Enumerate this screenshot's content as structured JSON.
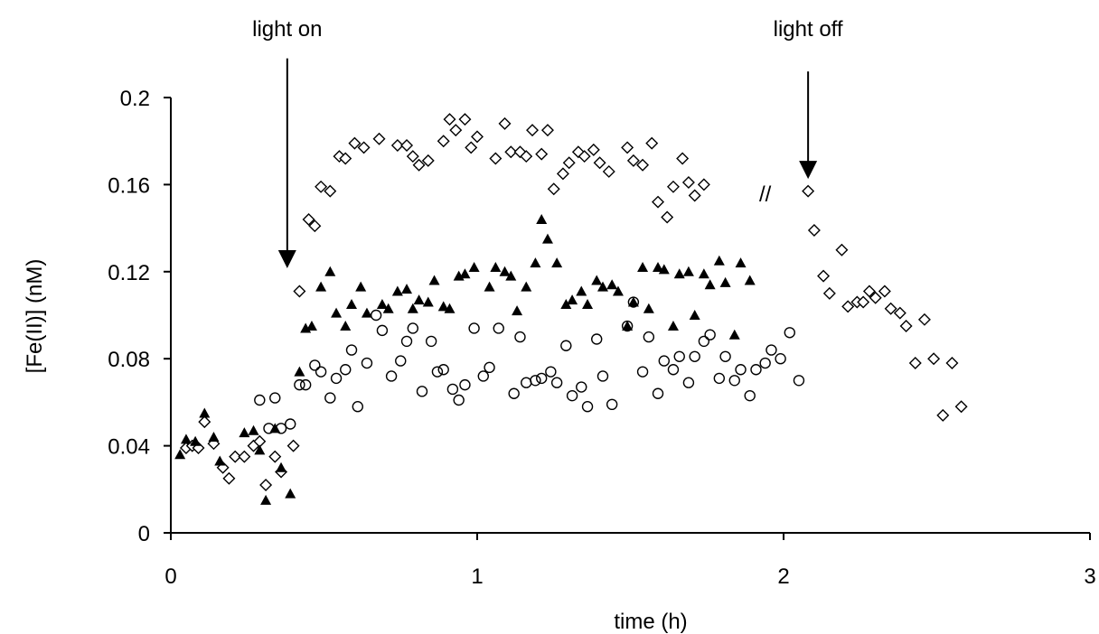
{
  "chart_data": {
    "type": "scatter",
    "xlabel": "time (h)",
    "ylabel": "[Fe(II)] (nM)",
    "xlim": [
      0,
      3
    ],
    "ylim": [
      0,
      0.2
    ],
    "x_ticks": [
      "0",
      "1",
      "2",
      "3"
    ],
    "y_ticks": [
      "0",
      "0.04",
      "0.08",
      "0.12",
      "0.16",
      "0.2"
    ],
    "grid": false,
    "legend": "none",
    "annotations": [
      {
        "text": "light on",
        "x": 0.38,
        "arrow_from_y": 0.218,
        "arrow_to_y": 0.122
      },
      {
        "text": "light off",
        "x": 2.08,
        "arrow_from_y": 0.212,
        "arrow_to_y": 0.163
      },
      {
        "text": "//",
        "x": 1.94,
        "y": 0.156
      }
    ],
    "series": [
      {
        "marker": "open-diamond",
        "color": "#000000",
        "points": [
          [
            0.05,
            0.039
          ],
          [
            0.07,
            0.04
          ],
          [
            0.09,
            0.039
          ],
          [
            0.11,
            0.051
          ],
          [
            0.14,
            0.041
          ],
          [
            0.17,
            0.03
          ],
          [
            0.19,
            0.025
          ],
          [
            0.21,
            0.035
          ],
          [
            0.24,
            0.035
          ],
          [
            0.27,
            0.04
          ],
          [
            0.29,
            0.042
          ],
          [
            0.31,
            0.022
          ],
          [
            0.34,
            0.035
          ],
          [
            0.36,
            0.028
          ],
          [
            0.4,
            0.04
          ],
          [
            0.42,
            0.111
          ],
          [
            0.45,
            0.144
          ],
          [
            0.47,
            0.141
          ],
          [
            0.49,
            0.159
          ],
          [
            0.52,
            0.157
          ],
          [
            0.55,
            0.173
          ],
          [
            0.57,
            0.172
          ],
          [
            0.6,
            0.179
          ],
          [
            0.63,
            0.177
          ],
          [
            0.68,
            0.181
          ],
          [
            0.74,
            0.178
          ],
          [
            0.77,
            0.178
          ],
          [
            0.79,
            0.173
          ],
          [
            0.81,
            0.169
          ],
          [
            0.84,
            0.171
          ],
          [
            0.89,
            0.18
          ],
          [
            0.91,
            0.19
          ],
          [
            0.93,
            0.185
          ],
          [
            0.96,
            0.19
          ],
          [
            0.98,
            0.177
          ],
          [
            1.0,
            0.182
          ],
          [
            1.06,
            0.172
          ],
          [
            1.09,
            0.188
          ],
          [
            1.11,
            0.175
          ],
          [
            1.14,
            0.175
          ],
          [
            1.16,
            0.173
          ],
          [
            1.18,
            0.185
          ],
          [
            1.21,
            0.174
          ],
          [
            1.23,
            0.185
          ],
          [
            1.25,
            0.158
          ],
          [
            1.28,
            0.165
          ],
          [
            1.3,
            0.17
          ],
          [
            1.33,
            0.175
          ],
          [
            1.35,
            0.173
          ],
          [
            1.38,
            0.176
          ],
          [
            1.4,
            0.17
          ],
          [
            1.43,
            0.166
          ],
          [
            1.49,
            0.177
          ],
          [
            1.51,
            0.171
          ],
          [
            1.54,
            0.169
          ],
          [
            1.57,
            0.179
          ],
          [
            1.59,
            0.152
          ],
          [
            1.62,
            0.145
          ],
          [
            1.64,
            0.159
          ],
          [
            1.67,
            0.172
          ],
          [
            1.69,
            0.161
          ],
          [
            1.71,
            0.155
          ],
          [
            1.74,
            0.16
          ],
          [
            2.08,
            0.157
          ],
          [
            2.1,
            0.139
          ],
          [
            2.13,
            0.118
          ],
          [
            2.15,
            0.11
          ],
          [
            2.19,
            0.13
          ],
          [
            2.21,
            0.104
          ],
          [
            2.24,
            0.106
          ],
          [
            2.26,
            0.106
          ],
          [
            2.28,
            0.111
          ],
          [
            2.3,
            0.108
          ],
          [
            2.33,
            0.111
          ],
          [
            2.35,
            0.103
          ],
          [
            2.38,
            0.101
          ],
          [
            2.4,
            0.095
          ],
          [
            2.43,
            0.078
          ],
          [
            2.46,
            0.098
          ],
          [
            2.49,
            0.08
          ],
          [
            2.52,
            0.054
          ],
          [
            2.55,
            0.078
          ],
          [
            2.58,
            0.058
          ]
        ]
      },
      {
        "marker": "filled-triangle",
        "color": "#000000",
        "points": [
          [
            0.03,
            0.036
          ],
          [
            0.05,
            0.043
          ],
          [
            0.08,
            0.042
          ],
          [
            0.11,
            0.055
          ],
          [
            0.14,
            0.044
          ],
          [
            0.16,
            0.033
          ],
          [
            0.24,
            0.046
          ],
          [
            0.27,
            0.047
          ],
          [
            0.29,
            0.038
          ],
          [
            0.31,
            0.015
          ],
          [
            0.34,
            0.048
          ],
          [
            0.36,
            0.03
          ],
          [
            0.39,
            0.018
          ],
          [
            0.42,
            0.074
          ],
          [
            0.44,
            0.094
          ],
          [
            0.46,
            0.095
          ],
          [
            0.49,
            0.113
          ],
          [
            0.52,
            0.12
          ],
          [
            0.54,
            0.101
          ],
          [
            0.57,
            0.095
          ],
          [
            0.59,
            0.105
          ],
          [
            0.62,
            0.113
          ],
          [
            0.64,
            0.101
          ],
          [
            0.69,
            0.105
          ],
          [
            0.71,
            0.103
          ],
          [
            0.74,
            0.111
          ],
          [
            0.77,
            0.112
          ],
          [
            0.79,
            0.103
          ],
          [
            0.81,
            0.107
          ],
          [
            0.84,
            0.106
          ],
          [
            0.86,
            0.116
          ],
          [
            0.89,
            0.104
          ],
          [
            0.91,
            0.103
          ],
          [
            0.94,
            0.118
          ],
          [
            0.96,
            0.119
          ],
          [
            0.99,
            0.122
          ],
          [
            1.04,
            0.113
          ],
          [
            1.06,
            0.122
          ],
          [
            1.09,
            0.12
          ],
          [
            1.11,
            0.118
          ],
          [
            1.13,
            0.102
          ],
          [
            1.16,
            0.113
          ],
          [
            1.19,
            0.124
          ],
          [
            1.21,
            0.144
          ],
          [
            1.23,
            0.135
          ],
          [
            1.26,
            0.124
          ],
          [
            1.29,
            0.105
          ],
          [
            1.31,
            0.107
          ],
          [
            1.34,
            0.111
          ],
          [
            1.36,
            0.105
          ],
          [
            1.39,
            0.116
          ],
          [
            1.41,
            0.113
          ],
          [
            1.44,
            0.114
          ],
          [
            1.46,
            0.111
          ],
          [
            1.49,
            0.095
          ],
          [
            1.51,
            0.106
          ],
          [
            1.54,
            0.122
          ],
          [
            1.56,
            0.103
          ],
          [
            1.59,
            0.122
          ],
          [
            1.61,
            0.121
          ],
          [
            1.64,
            0.095
          ],
          [
            1.66,
            0.119
          ],
          [
            1.69,
            0.12
          ],
          [
            1.71,
            0.1
          ],
          [
            1.74,
            0.119
          ],
          [
            1.76,
            0.114
          ],
          [
            1.79,
            0.125
          ],
          [
            1.81,
            0.115
          ],
          [
            1.84,
            0.091
          ],
          [
            1.86,
            0.124
          ],
          [
            1.89,
            0.116
          ]
        ]
      },
      {
        "marker": "open-circle",
        "color": "#000000",
        "points": [
          [
            0.29,
            0.061
          ],
          [
            0.32,
            0.048
          ],
          [
            0.34,
            0.062
          ],
          [
            0.36,
            0.048
          ],
          [
            0.39,
            0.05
          ],
          [
            0.42,
            0.068
          ],
          [
            0.44,
            0.068
          ],
          [
            0.47,
            0.077
          ],
          [
            0.49,
            0.074
          ],
          [
            0.52,
            0.062
          ],
          [
            0.54,
            0.071
          ],
          [
            0.57,
            0.075
          ],
          [
            0.59,
            0.084
          ],
          [
            0.61,
            0.058
          ],
          [
            0.64,
            0.078
          ],
          [
            0.67,
            0.1
          ],
          [
            0.69,
            0.093
          ],
          [
            0.72,
            0.072
          ],
          [
            0.75,
            0.079
          ],
          [
            0.77,
            0.088
          ],
          [
            0.79,
            0.094
          ],
          [
            0.82,
            0.065
          ],
          [
            0.85,
            0.088
          ],
          [
            0.87,
            0.074
          ],
          [
            0.89,
            0.075
          ],
          [
            0.92,
            0.066
          ],
          [
            0.94,
            0.061
          ],
          [
            0.96,
            0.068
          ],
          [
            0.99,
            0.094
          ],
          [
            1.02,
            0.072
          ],
          [
            1.04,
            0.076
          ],
          [
            1.07,
            0.094
          ],
          [
            1.12,
            0.064
          ],
          [
            1.14,
            0.09
          ],
          [
            1.16,
            0.069
          ],
          [
            1.19,
            0.07
          ],
          [
            1.21,
            0.071
          ],
          [
            1.24,
            0.074
          ],
          [
            1.26,
            0.069
          ],
          [
            1.29,
            0.086
          ],
          [
            1.31,
            0.063
          ],
          [
            1.34,
            0.067
          ],
          [
            1.36,
            0.058
          ],
          [
            1.39,
            0.089
          ],
          [
            1.41,
            0.072
          ],
          [
            1.44,
            0.059
          ],
          [
            1.49,
            0.095
          ],
          [
            1.51,
            0.106
          ],
          [
            1.54,
            0.074
          ],
          [
            1.56,
            0.09
          ],
          [
            1.59,
            0.064
          ],
          [
            1.61,
            0.079
          ],
          [
            1.64,
            0.075
          ],
          [
            1.66,
            0.081
          ],
          [
            1.69,
            0.069
          ],
          [
            1.71,
            0.081
          ],
          [
            1.74,
            0.088
          ],
          [
            1.76,
            0.091
          ],
          [
            1.79,
            0.071
          ],
          [
            1.81,
            0.081
          ],
          [
            1.84,
            0.07
          ],
          [
            1.86,
            0.075
          ],
          [
            1.89,
            0.063
          ],
          [
            1.91,
            0.075
          ],
          [
            1.94,
            0.078
          ],
          [
            1.96,
            0.084
          ],
          [
            1.99,
            0.08
          ],
          [
            2.02,
            0.092
          ],
          [
            2.05,
            0.07
          ]
        ]
      }
    ]
  }
}
